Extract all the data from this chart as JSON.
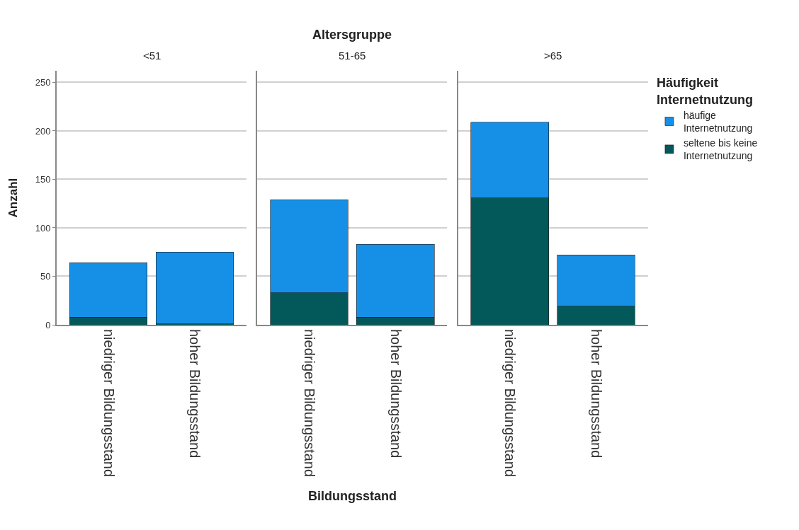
{
  "chart_data": [
    {
      "type": "bar",
      "title": "<51",
      "ylabel": "Anzahl",
      "legend_title": "Häufigkeit Internetnutzung",
      "legend": "top right",
      "categories": [
        "niedriger Bildungsstand",
        "hoher Bildungsstand"
      ],
      "stacked": true,
      "ylim": [
        0,
        262
      ],
      "yticks": [
        0,
        50,
        100,
        150,
        200,
        250
      ],
      "grid": "y",
      "series": [
        {
          "name": "seltene bis keine Internetnutzung",
          "color": "#03585a",
          "values": [
            8,
            1
          ]
        },
        {
          "name": "häufige Internetnutzung",
          "color": "#1590e6",
          "values": [
            56,
            74
          ]
        }
      ]
    },
    {
      "type": "bar",
      "title": "51-65",
      "xlabel": "Bildungsstand",
      "annotations": [
        "Altersgruppe"
      ],
      "categories": [
        "niedriger Bildungsstand",
        "hoher Bildungsstand"
      ],
      "stacked": true,
      "ylim": [
        0,
        262
      ],
      "yticks": [
        0,
        50,
        100,
        150,
        200,
        250
      ],
      "grid": "y",
      "tick_labels": "x",
      "series": [
        {
          "color": "#03585a",
          "values": [
            33,
            8
          ]
        },
        {
          "color": "#1590e6",
          "values": [
            96,
            75
          ]
        }
      ]
    },
    {
      "type": "bar",
      "title": ">65",
      "categories": [
        "niedriger Bildungsstand",
        "hoher Bildungsstand"
      ],
      "stacked": true,
      "ylim": [
        0,
        262
      ],
      "yticks": [
        0,
        50,
        100,
        150,
        200,
        250
      ],
      "grid": "y",
      "tick_labels": "x",
      "series": [
        {
          "color": "#03585a",
          "values": [
            131,
            19
          ]
        },
        {
          "color": "#1590e6",
          "values": [
            78,
            53
          ]
        }
      ]
    }
  ]
}
